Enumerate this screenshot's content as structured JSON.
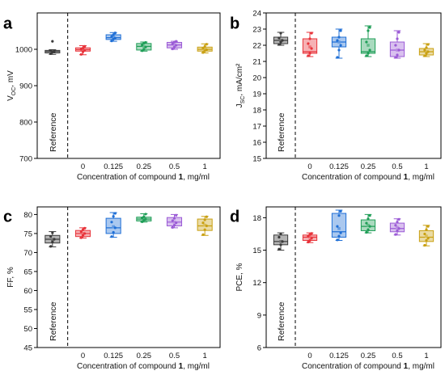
{
  "chart_data": [
    {
      "type": "box",
      "panel_label": "a",
      "ylabel": "V_OC, mV",
      "xlabel": "Concentration of compound 1, mg/ml",
      "reference_label": "Reference",
      "categories": [
        "Reference",
        "0",
        "0.125",
        "0.25",
        "0.5",
        "1"
      ],
      "ylim": [
        700,
        1100
      ],
      "yticks": [
        700,
        800,
        900,
        1000
      ],
      "boxes": [
        {
          "min": 986,
          "q1": 990,
          "median": 994,
          "mean": 993,
          "q3": 997,
          "max": 999,
          "color": "#3a3a3a",
          "points": [
            988,
            992,
            994,
            996,
            1022
          ]
        },
        {
          "min": 985,
          "q1": 995,
          "median": 999,
          "mean": 999,
          "q3": 1004,
          "max": 1010,
          "color": "#e8333a",
          "points": [
            986,
            993,
            997,
            1000,
            1003,
            1008
          ]
        },
        {
          "min": 1022,
          "q1": 1027,
          "median": 1032,
          "mean": 1033,
          "q3": 1040,
          "max": 1046,
          "color": "#1f6fd6",
          "points": [
            1023,
            1028,
            1031,
            1035,
            1040,
            1045
          ]
        },
        {
          "min": 995,
          "q1": 998,
          "median": 1008,
          "mean": 1008,
          "q3": 1016,
          "max": 1020,
          "color": "#1f9e57",
          "points": [
            996,
            1000,
            1006,
            1012,
            1017,
            1019
          ]
        },
        {
          "min": 1000,
          "q1": 1004,
          "median": 1012,
          "mean": 1012,
          "q3": 1019,
          "max": 1022,
          "color": "#9b5bd6",
          "points": [
            1001,
            1006,
            1011,
            1015,
            1020,
            1022
          ]
        },
        {
          "min": 990,
          "q1": 995,
          "median": 1000,
          "mean": 1001,
          "q3": 1006,
          "max": 1015,
          "color": "#c9a012",
          "points": [
            991,
            996,
            999,
            1003,
            1008,
            1014
          ]
        }
      ]
    },
    {
      "type": "box",
      "panel_label": "b",
      "ylabel": "J_SC, mA/cm²",
      "xlabel": "Concentration of compound 1, mg/ml",
      "reference_label": "Reference",
      "categories": [
        "Reference",
        "0",
        "0.125",
        "0.25",
        "0.5",
        "1"
      ],
      "ylim": [
        15,
        24
      ],
      "yticks": [
        15,
        16,
        17,
        18,
        19,
        20,
        21,
        22,
        23,
        24
      ],
      "boxes": [
        {
          "min": 22.0,
          "q1": 22.1,
          "median": 22.3,
          "mean": 22.3,
          "q3": 22.5,
          "max": 22.8,
          "color": "#3a3a3a",
          "points": [
            22.05,
            22.2,
            22.3,
            22.45,
            22.75
          ]
        },
        {
          "min": 21.3,
          "q1": 21.5,
          "median": 21.6,
          "mean": 21.9,
          "q3": 22.4,
          "max": 22.8,
          "color": "#e8333a",
          "points": [
            21.35,
            21.5,
            21.8,
            22.1,
            22.4,
            22.75
          ]
        },
        {
          "min": 21.2,
          "q1": 21.9,
          "median": 22.2,
          "mean": 22.2,
          "q3": 22.5,
          "max": 23.0,
          "color": "#1f6fd6",
          "points": [
            21.25,
            21.7,
            22.0,
            22.3,
            22.5,
            22.9
          ]
        },
        {
          "min": 21.3,
          "q1": 21.5,
          "median": 21.6,
          "mean": 22.0,
          "q3": 22.4,
          "max": 23.2,
          "color": "#1f9e57",
          "points": [
            21.35,
            21.5,
            21.7,
            22.2,
            22.9,
            23.1
          ]
        },
        {
          "min": 21.2,
          "q1": 21.3,
          "median": 21.7,
          "mean": 21.7,
          "q3": 22.2,
          "max": 22.9,
          "color": "#9b5bd6",
          "points": [
            21.25,
            21.4,
            21.7,
            22.0,
            22.4,
            22.8
          ]
        },
        {
          "min": 21.3,
          "q1": 21.4,
          "median": 21.6,
          "mean": 21.6,
          "q3": 21.8,
          "max": 22.1,
          "color": "#c9a012",
          "points": [
            21.35,
            21.5,
            21.6,
            21.7,
            21.85,
            22.05
          ]
        }
      ]
    },
    {
      "type": "box",
      "panel_label": "c",
      "ylabel": "FF, %",
      "xlabel": "Concentration of compound 1, mg/ml",
      "reference_label": "Reference",
      "categories": [
        "Reference",
        "0",
        "0.125",
        "0.25",
        "0.5",
        "1"
      ],
      "ylim": [
        45,
        82
      ],
      "yticks": [
        45,
        50,
        55,
        60,
        65,
        70,
        75,
        80
      ],
      "boxes": [
        {
          "min": 71.5,
          "q1": 72.5,
          "median": 73.5,
          "mean": 73.4,
          "q3": 74.5,
          "max": 75.5,
          "color": "#3a3a3a",
          "points": [
            71.6,
            72.8,
            73.5,
            74.2,
            75.2
          ]
        },
        {
          "min": 73.8,
          "q1": 74.2,
          "median": 75.0,
          "mean": 75.0,
          "q3": 75.8,
          "max": 76.5,
          "color": "#e8333a",
          "points": [
            73.9,
            74.5,
            75.0,
            75.5,
            76.0,
            76.4
          ]
        },
        {
          "min": 74.0,
          "q1": 75.0,
          "median": 76.5,
          "mean": 76.8,
          "q3": 79.0,
          "max": 80.5,
          "color": "#1f6fd6",
          "points": [
            74.2,
            75.3,
            76.5,
            78.0,
            79.5,
            80.3
          ]
        },
        {
          "min": 78.0,
          "q1": 78.3,
          "median": 78.8,
          "mean": 78.8,
          "q3": 79.3,
          "max": 80.2,
          "color": "#1f9e57",
          "points": [
            78.1,
            78.5,
            78.8,
            79.1,
            79.4,
            80.1
          ]
        },
        {
          "min": 76.5,
          "q1": 77.0,
          "median": 78.0,
          "mean": 78.0,
          "q3": 79.2,
          "max": 80.0,
          "color": "#9b5bd6",
          "points": [
            76.6,
            77.2,
            77.8,
            78.4,
            79.0,
            79.8
          ]
        },
        {
          "min": 74.5,
          "q1": 75.8,
          "median": 77.0,
          "mean": 77.2,
          "q3": 78.8,
          "max": 79.5,
          "color": "#c9a012",
          "points": [
            74.7,
            76.0,
            77.0,
            77.8,
            78.6,
            79.4
          ]
        }
      ]
    },
    {
      "type": "box",
      "panel_label": "d",
      "ylabel": "PCE, %",
      "xlabel": "Concentration of compound 1, mg/ml",
      "reference_label": "Reference",
      "categories": [
        "Reference",
        "0",
        "0.125",
        "0.25",
        "0.5",
        "1"
      ],
      "ylim": [
        6,
        19
      ],
      "yticks": [
        6,
        9,
        12,
        15,
        18
      ],
      "boxes": [
        {
          "min": 15.0,
          "q1": 15.5,
          "median": 15.8,
          "mean": 15.8,
          "q3": 16.4,
          "max": 16.6,
          "color": "#3a3a3a",
          "points": [
            15.1,
            15.5,
            15.8,
            16.2,
            16.5
          ]
        },
        {
          "min": 15.7,
          "q1": 15.9,
          "median": 16.2,
          "mean": 16.2,
          "q3": 16.4,
          "max": 16.6,
          "color": "#e8333a",
          "points": [
            15.75,
            15.9,
            16.1,
            16.3,
            16.45,
            16.55
          ]
        },
        {
          "min": 15.9,
          "q1": 16.2,
          "median": 16.7,
          "mean": 17.0,
          "q3": 18.4,
          "max": 18.7,
          "color": "#1f6fd6",
          "points": [
            15.95,
            16.3,
            16.6,
            17.2,
            18.2,
            18.6
          ]
        },
        {
          "min": 16.6,
          "q1": 16.8,
          "median": 17.2,
          "mean": 17.3,
          "q3": 17.8,
          "max": 18.3,
          "color": "#1f9e57",
          "points": [
            16.65,
            16.9,
            17.2,
            17.5,
            17.9,
            18.2
          ]
        },
        {
          "min": 16.4,
          "q1": 16.7,
          "median": 17.0,
          "mean": 17.1,
          "q3": 17.5,
          "max": 17.9,
          "color": "#9b5bd6",
          "points": [
            16.45,
            16.8,
            17.0,
            17.3,
            17.6,
            17.85
          ]
        },
        {
          "min": 15.4,
          "q1": 15.8,
          "median": 16.2,
          "mean": 16.3,
          "q3": 16.8,
          "max": 17.3,
          "color": "#c9a012",
          "points": [
            15.45,
            15.9,
            16.1,
            16.5,
            16.9,
            17.2
          ]
        }
      ]
    }
  ]
}
